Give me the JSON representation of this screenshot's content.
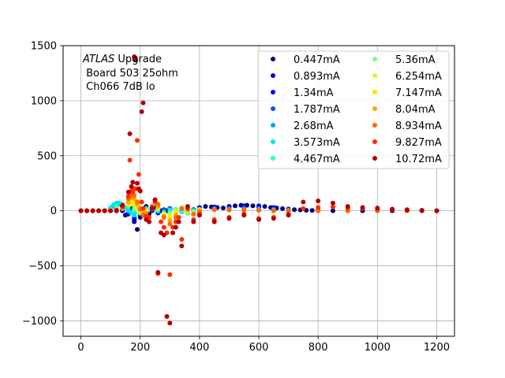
{
  "chart_data": {
    "type": "scatter",
    "title": "",
    "xlabel": "",
    "ylabel": "",
    "xlim": [
      -60,
      1260
    ],
    "ylim": [
      -1140,
      1500
    ],
    "xticks": [
      0,
      200,
      400,
      600,
      800,
      1000,
      1200
    ],
    "yticks": [
      -1000,
      -500,
      0,
      500,
      1000,
      1500
    ],
    "xtick_labels": [
      "0",
      "200",
      "400",
      "600",
      "800",
      "1000",
      "1200"
    ],
    "ytick_labels": [
      "−1000",
      "−500",
      "0",
      "500",
      "1000",
      "1500"
    ],
    "grid": true,
    "legend_position": "top-right",
    "annotation": {
      "line1_italic": "ATLAS",
      "line1_rest": " Upgrade",
      "line2": " Board 503 25ohm",
      "line3": " Ch066 7dB lo"
    },
    "series": [
      {
        "name": "0.447mA",
        "color": "#00007f",
        "x": [
          0,
          20,
          40,
          60,
          80,
          100,
          120,
          140,
          150,
          160,
          170,
          180,
          190,
          200,
          210,
          220,
          230,
          240,
          250,
          260,
          270,
          280,
          290,
          300,
          320,
          340,
          360,
          380,
          400,
          420,
          440,
          460,
          480,
          500,
          520,
          540,
          560,
          580,
          600,
          620,
          640,
          660,
          680,
          700,
          720,
          740,
          760,
          780,
          800,
          850,
          900,
          950,
          1000,
          1050,
          1100,
          1150,
          1200
        ],
        "y": [
          0,
          0,
          0,
          0,
          0,
          0,
          0,
          0,
          -40,
          -10,
          20,
          -80,
          -170,
          -60,
          20,
          40,
          -30,
          0,
          30,
          20,
          0,
          -10,
          0,
          20,
          10,
          0,
          -20,
          -30,
          20,
          40,
          35,
          30,
          25,
          40,
          45,
          50,
          50,
          45,
          45,
          40,
          30,
          25,
          20,
          15,
          10,
          8,
          5,
          3,
          2,
          0,
          0,
          0,
          0,
          0,
          0,
          0,
          0
        ]
      },
      {
        "name": "0.893mA",
        "color": "#0000b2",
        "x": [
          0,
          20,
          40,
          60,
          80,
          100,
          120,
          140,
          160,
          180,
          200,
          220,
          240,
          260,
          280,
          300,
          320,
          340,
          360,
          380,
          400,
          450,
          500,
          550,
          600,
          650,
          700,
          800,
          900,
          1000,
          1100,
          1200
        ],
        "y": [
          0,
          0,
          0,
          0,
          0,
          0,
          0,
          0,
          -30,
          -100,
          -40,
          20,
          30,
          -20,
          0,
          20,
          10,
          -10,
          -20,
          10,
          30,
          35,
          40,
          45,
          40,
          30,
          15,
          5,
          0,
          0,
          0,
          0
        ]
      },
      {
        "name": "1.34mA",
        "color": "#0000ff",
        "x": [
          0,
          20,
          40,
          60,
          80,
          100,
          120,
          140,
          160,
          180,
          200,
          220,
          240,
          260,
          280,
          300,
          320,
          340,
          360,
          380,
          400,
          450,
          500,
          550,
          600,
          650,
          700,
          800,
          900,
          1000,
          1100,
          1200
        ],
        "y": [
          0,
          0,
          0,
          0,
          0,
          0,
          0,
          10,
          -20,
          -60,
          -20,
          20,
          20,
          -10,
          10,
          20,
          5,
          -5,
          -10,
          10,
          20,
          25,
          30,
          35,
          30,
          25,
          10,
          5,
          0,
          0,
          0,
          0
        ]
      },
      {
        "name": "1.787mA",
        "color": "#0055ff",
        "x": [
          0,
          20,
          40,
          60,
          80,
          100,
          120,
          140,
          160,
          180,
          200,
          220,
          240,
          260,
          280,
          300,
          320,
          340,
          360,
          380,
          400,
          450,
          500,
          550,
          600,
          650,
          700,
          800,
          900,
          1000,
          1100,
          1200
        ],
        "y": [
          0,
          0,
          0,
          0,
          0,
          10,
          30,
          40,
          20,
          -20,
          0,
          20,
          10,
          -10,
          5,
          15,
          5,
          -5,
          -5,
          5,
          15,
          20,
          20,
          25,
          20,
          15,
          5,
          0,
          0,
          0,
          0,
          0
        ]
      },
      {
        "name": "2.68mA",
        "color": "#00a5ff",
        "x": [
          0,
          20,
          40,
          60,
          80,
          100,
          110,
          120,
          130,
          140,
          150,
          160,
          170,
          180,
          200,
          220,
          240,
          260,
          280,
          300,
          320,
          340,
          360,
          380,
          400,
          450,
          500,
          550,
          600,
          650,
          700,
          800,
          900,
          1000,
          1100,
          1200
        ],
        "y": [
          0,
          0,
          0,
          0,
          0,
          20,
          40,
          55,
          60,
          50,
          30,
          10,
          -10,
          -30,
          -20,
          10,
          20,
          0,
          -10,
          10,
          10,
          0,
          -10,
          5,
          10,
          15,
          15,
          15,
          15,
          10,
          5,
          0,
          0,
          0,
          0,
          0
        ]
      },
      {
        "name": "3.573mA",
        "color": "#00e4f7",
        "x": [
          0,
          20,
          40,
          60,
          80,
          100,
          110,
          120,
          130,
          140,
          150,
          160,
          170,
          180,
          200,
          220,
          240,
          260,
          280,
          300,
          320,
          340,
          360,
          380,
          400,
          450,
          500,
          550,
          600,
          650,
          700,
          800,
          900,
          1000,
          1100,
          1200
        ],
        "y": [
          0,
          0,
          0,
          0,
          0,
          30,
          55,
          70,
          70,
          60,
          30,
          0,
          -20,
          -40,
          -20,
          10,
          20,
          0,
          -20,
          10,
          0,
          -10,
          -10,
          0,
          10,
          15,
          10,
          10,
          10,
          5,
          5,
          0,
          0,
          0,
          0,
          0
        ]
      },
      {
        "name": "4.467mA",
        "color": "#29ffce",
        "x": [
          0,
          20,
          40,
          60,
          80,
          100,
          120,
          140,
          160,
          180,
          200,
          220,
          240,
          260,
          280,
          300,
          320,
          340,
          360,
          380,
          400,
          450,
          500,
          550,
          600,
          650,
          700,
          800,
          900,
          1000,
          1100,
          1200
        ],
        "y": [
          0,
          0,
          0,
          0,
          0,
          10,
          40,
          60,
          40,
          0,
          -20,
          20,
          40,
          10,
          -20,
          -10,
          10,
          0,
          -20,
          0,
          10,
          10,
          5,
          5,
          5,
          5,
          0,
          0,
          0,
          0,
          0,
          0
        ]
      },
      {
        "name": "5.36mA",
        "color": "#7dff7a",
        "x": [
          0,
          20,
          40,
          60,
          80,
          100,
          120,
          140,
          160,
          180,
          200,
          220,
          240,
          260,
          280,
          300,
          320,
          340,
          360,
          380,
          400,
          450,
          500,
          550,
          600,
          650,
          700,
          800,
          900,
          1000,
          1100,
          1200
        ],
        "y": [
          0,
          0,
          0,
          0,
          0,
          5,
          20,
          40,
          50,
          20,
          -20,
          0,
          40,
          20,
          -20,
          -30,
          0,
          20,
          -10,
          -10,
          10,
          10,
          10,
          5,
          5,
          0,
          0,
          0,
          0,
          0,
          0,
          0
        ]
      },
      {
        "name": "6.254mA",
        "color": "#ceff29",
        "x": [
          0,
          20,
          40,
          60,
          80,
          100,
          120,
          140,
          160,
          170,
          180,
          190,
          200,
          220,
          240,
          260,
          280,
          300,
          320,
          340,
          360,
          380,
          400,
          450,
          500,
          550,
          600,
          650,
          700,
          800,
          900,
          1000,
          1100,
          1200
        ],
        "y": [
          0,
          0,
          0,
          0,
          0,
          0,
          10,
          30,
          60,
          70,
          50,
          20,
          -10,
          0,
          30,
          20,
          -30,
          -40,
          0,
          30,
          -10,
          -20,
          10,
          10,
          10,
          5,
          5,
          0,
          0,
          0,
          0,
          0,
          0,
          0
        ]
      },
      {
        "name": "7.147mA",
        "color": "#ffe500",
        "x": [
          0,
          20,
          40,
          60,
          80,
          100,
          120,
          140,
          160,
          170,
          180,
          190,
          200,
          210,
          220,
          240,
          260,
          280,
          300,
          320,
          340,
          360,
          380,
          400,
          450,
          500,
          550,
          600,
          650,
          700,
          800,
          900,
          1000,
          1100,
          1200
        ],
        "y": [
          0,
          0,
          0,
          0,
          0,
          0,
          5,
          20,
          60,
          90,
          80,
          40,
          0,
          -20,
          0,
          40,
          30,
          -40,
          -60,
          -10,
          30,
          0,
          -30,
          10,
          10,
          10,
          5,
          5,
          0,
          0,
          0,
          0,
          0,
          0,
          0
        ]
      },
      {
        "name": "8.04mA",
        "color": "#ffa700",
        "x": [
          0,
          20,
          40,
          60,
          80,
          100,
          120,
          140,
          160,
          170,
          180,
          190,
          200,
          210,
          220,
          240,
          260,
          280,
          300,
          320,
          340,
          360,
          380,
          400,
          450,
          500,
          550,
          600,
          650,
          700,
          800,
          900,
          1000,
          1100,
          1200
        ],
        "y": [
          0,
          0,
          0,
          0,
          0,
          0,
          5,
          20,
          80,
          120,
          110,
          60,
          10,
          -30,
          -20,
          40,
          40,
          -50,
          -90,
          -40,
          20,
          10,
          -30,
          0,
          10,
          10,
          5,
          5,
          0,
          0,
          0,
          0,
          0,
          0,
          0
        ]
      },
      {
        "name": "8.934mA",
        "color": "#ff6800",
        "x": [
          0,
          20,
          40,
          60,
          80,
          100,
          120,
          140,
          160,
          170,
          180,
          190,
          200,
          210,
          220,
          240,
          260,
          280,
          300,
          320,
          340,
          360,
          380,
          400,
          450,
          500,
          550,
          600,
          650,
          700,
          800,
          900,
          1000,
          1100,
          1200
        ],
        "y": [
          0,
          0,
          0,
          0,
          0,
          0,
          5,
          30,
          110,
          150,
          140,
          80,
          20,
          -40,
          -40,
          40,
          60,
          -60,
          -120,
          -60,
          20,
          20,
          -30,
          -10,
          10,
          10,
          10,
          5,
          0,
          0,
          0,
          0,
          0,
          0,
          0
        ]
      },
      {
        "name": "9.827mA",
        "color": "#ff2c00",
        "x": [
          0,
          20,
          40,
          60,
          80,
          100,
          120,
          140,
          160,
          165,
          170,
          175,
          180,
          185,
          190,
          195,
          200,
          205,
          210,
          220,
          230,
          240,
          250,
          260,
          270,
          280,
          290,
          300,
          310,
          320,
          330,
          340,
          360,
          380,
          400,
          450,
          500,
          550,
          600,
          650,
          700,
          750,
          800,
          850,
          900,
          950,
          1000,
          1050,
          1100,
          1150,
          1200
        ],
        "y": [
          0,
          0,
          0,
          0,
          0,
          0,
          5,
          40,
          130,
          460,
          180,
          170,
          200,
          200,
          640,
          330,
          180,
          80,
          20,
          -50,
          -60,
          30,
          80,
          -570,
          -100,
          -150,
          -200,
          -580,
          -150,
          -100,
          -60,
          -260,
          20,
          -80,
          -30,
          -80,
          -60,
          -30,
          -70,
          -60,
          -30,
          20,
          30,
          35,
          25,
          20,
          15,
          10,
          5,
          3,
          0
        ]
      },
      {
        "name": "10.72mA",
        "color": "#b20000",
        "x": [
          0,
          20,
          40,
          60,
          80,
          100,
          120,
          140,
          160,
          165,
          170,
          175,
          180,
          185,
          190,
          195,
          200,
          205,
          210,
          220,
          230,
          240,
          250,
          260,
          270,
          280,
          290,
          300,
          310,
          320,
          330,
          340,
          360,
          380,
          400,
          450,
          500,
          550,
          600,
          650,
          700,
          750,
          800,
          850,
          900,
          950,
          1000,
          1050,
          1100,
          1150,
          1200
        ],
        "y": [
          0,
          0,
          0,
          0,
          0,
          0,
          5,
          50,
          170,
          700,
          220,
          260,
          1400,
          1370,
          250,
          200,
          180,
          900,
          980,
          -80,
          -100,
          20,
          100,
          -560,
          -200,
          -220,
          -960,
          -1020,
          -200,
          -150,
          -100,
          -320,
          40,
          -100,
          -40,
          -100,
          -70,
          -40,
          -80,
          -70,
          -40,
          80,
          90,
          70,
          40,
          30,
          25,
          15,
          10,
          5,
          0
        ]
      }
    ]
  }
}
